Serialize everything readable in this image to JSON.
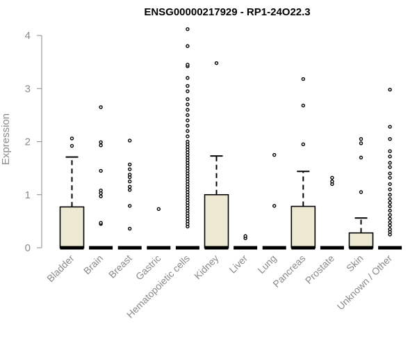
{
  "chart_data": {
    "type": "box",
    "title": "ENSG00000217929 - RP1-24O22.3",
    "ylabel": "Expression",
    "xlabel": "",
    "ylim": [
      0,
      4.2
    ],
    "yticks": [
      0,
      1,
      2,
      3,
      4
    ],
    "grid": false,
    "colors": {
      "box_fill": "#ede8d1",
      "box_stroke": "#000000",
      "axis": "#8a8a8a"
    },
    "categories": [
      "Bladder",
      "Brain",
      "Breast",
      "Gastric",
      "Hematopoietic cells",
      "Kidney",
      "Liver",
      "Lung",
      "Pancreas",
      "Prostate",
      "Skin",
      "Unknown / Other"
    ],
    "boxes": [
      {
        "q1": 0,
        "median": 0,
        "q3": 0.77,
        "whisker_low": 0,
        "whisker_high": 1.71,
        "outliers": [
          1.92,
          2.06
        ]
      },
      {
        "q1": 0,
        "median": 0,
        "q3": 0,
        "whisker_low": 0,
        "whisker_high": 0,
        "outliers": [
          0.45,
          0.47,
          0.97,
          1.03,
          1.08,
          1.45,
          1.93,
          1.99,
          2.65
        ]
      },
      {
        "q1": 0,
        "median": 0,
        "q3": 0,
        "whisker_low": 0,
        "whisker_high": 0,
        "outliers": [
          0.36,
          0.79,
          1.09,
          1.15,
          1.25,
          1.33,
          1.38,
          1.48,
          1.57,
          2.02
        ]
      },
      {
        "q1": 0,
        "median": 0,
        "q3": 0,
        "whisker_low": 0,
        "whisker_high": 0,
        "outliers": [
          0.73
        ]
      },
      {
        "q1": 0,
        "median": 0,
        "q3": 0,
        "whisker_low": 0,
        "whisker_high": 0,
        "outliers": [
          0.4,
          0.45,
          0.5,
          0.55,
          0.6,
          0.65,
          0.7,
          0.75,
          0.8,
          0.85,
          0.9,
          0.95,
          1.0,
          1.05,
          1.1,
          1.15,
          1.2,
          1.25,
          1.3,
          1.35,
          1.4,
          1.45,
          1.5,
          1.55,
          1.6,
          1.65,
          1.7,
          1.75,
          1.8,
          1.85,
          1.9,
          1.95,
          2.0,
          2.1,
          2.2,
          2.3,
          2.4,
          2.5,
          2.6,
          2.7,
          2.8,
          2.95,
          3.05,
          3.2,
          3.42,
          3.45,
          3.8,
          4.12
        ]
      },
      {
        "q1": 0,
        "median": 0,
        "q3": 1.0,
        "whisker_low": 0,
        "whisker_high": 1.73,
        "outliers": [
          3.48
        ]
      },
      {
        "q1": 0,
        "median": 0,
        "q3": 0,
        "whisker_low": 0,
        "whisker_high": 0,
        "outliers": [
          0.18,
          0.22
        ]
      },
      {
        "q1": 0,
        "median": 0,
        "q3": 0,
        "whisker_low": 0,
        "whisker_high": 0,
        "outliers": [
          0.79,
          1.75
        ]
      },
      {
        "q1": 0,
        "median": 0,
        "q3": 0.78,
        "whisker_low": 0,
        "whisker_high": 1.44,
        "outliers": [
          1.95,
          2.68,
          3.18
        ]
      },
      {
        "q1": 0,
        "median": 0,
        "q3": 0,
        "whisker_low": 0,
        "whisker_high": 0,
        "outliers": [
          1.2,
          1.25,
          1.32
        ]
      },
      {
        "q1": 0,
        "median": 0,
        "q3": 0.28,
        "whisker_low": 0,
        "whisker_high": 0.56,
        "outliers": [
          1.05,
          1.7,
          1.97,
          2.05
        ]
      },
      {
        "q1": 0,
        "median": 0,
        "q3": 0,
        "whisker_low": 0,
        "whisker_high": 0,
        "outliers": [
          0.25,
          0.3,
          0.35,
          0.42,
          0.48,
          0.55,
          0.62,
          0.7,
          0.78,
          0.85,
          0.92,
          1.0,
          1.1,
          1.2,
          1.32,
          1.4,
          1.52,
          1.6,
          1.72,
          1.82,
          2.05,
          2.28,
          2.98
        ]
      }
    ]
  }
}
